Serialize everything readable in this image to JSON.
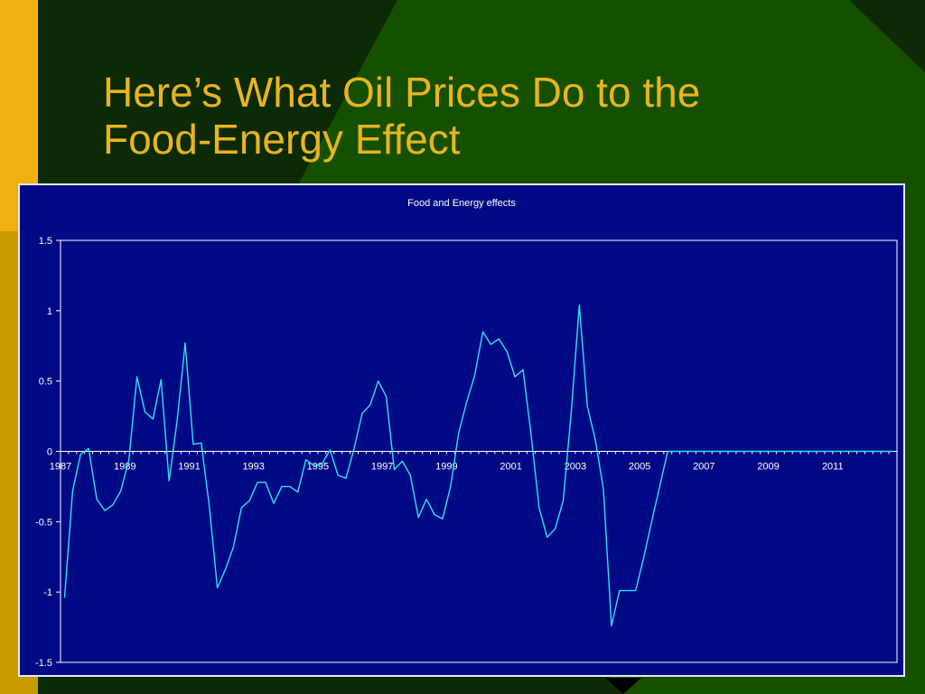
{
  "slide": {
    "title_line1": "Here’s What Oil Prices Do to the",
    "title_line2": "Food-Energy Effect"
  },
  "colors": {
    "slide_background": "#0c2a06",
    "slide_green": "#155001",
    "accent_gold": "#e8b420",
    "left_bar_dark_gold": "#c89a00",
    "chart_background": "#000a84",
    "line_color": "#30e0f0",
    "axis_color": "#ffffff"
  },
  "chart_data": {
    "type": "line",
    "title": "Food and Energy effects",
    "xlabel": "",
    "ylabel": "",
    "ylim": [
      -1.5,
      1.5
    ],
    "xlim": [
      1987,
      2013
    ],
    "y_ticks": [
      "1.5",
      "1",
      "0.5",
      "0",
      "-0.5",
      "-1",
      "-1.5"
    ],
    "x_ticks": [
      "1987",
      "1989",
      "1991",
      "1993",
      "1995",
      "1997",
      "1999",
      "2001",
      "2003",
      "2005",
      "2007",
      "2009",
      "2011"
    ],
    "grid": false,
    "legend": "none",
    "frequency": "quarterly",
    "x_start": 1987,
    "series": [
      {
        "values": [
          -1.04,
          -0.28,
          -0.02,
          0.02,
          -0.34,
          -0.42,
          -0.38,
          -0.28,
          -0.06,
          0.53,
          0.28,
          0.23,
          0.51,
          -0.21,
          0.22,
          0.77,
          0.05,
          0.06,
          -0.39,
          -0.97,
          -0.84,
          -0.68,
          -0.4,
          -0.35,
          -0.22,
          -0.22,
          -0.37,
          -0.25,
          -0.25,
          -0.29,
          -0.06,
          -0.1,
          -0.09,
          0.01,
          -0.17,
          -0.19,
          0.02,
          0.27,
          0.33,
          0.5,
          0.39,
          -0.13,
          -0.07,
          -0.17,
          -0.47,
          -0.34,
          -0.45,
          -0.48,
          -0.25,
          0.13,
          0.35,
          0.54,
          0.85,
          0.76,
          0.8,
          0.71,
          0.53,
          0.58,
          0.12,
          -0.4,
          -0.61,
          -0.55,
          -0.35,
          0.28,
          1.04,
          0.32,
          0.08,
          -0.27,
          -1.24,
          -0.99,
          -0.99,
          -0.99,
          -0.76,
          -0.5,
          -0.25,
          0,
          0,
          0,
          0,
          0,
          0,
          0,
          0,
          0,
          0,
          0,
          0,
          0,
          0,
          0,
          0,
          0,
          0,
          0,
          0,
          0,
          0,
          0,
          0,
          0,
          0,
          0,
          0,
          0
        ]
      }
    ]
  }
}
